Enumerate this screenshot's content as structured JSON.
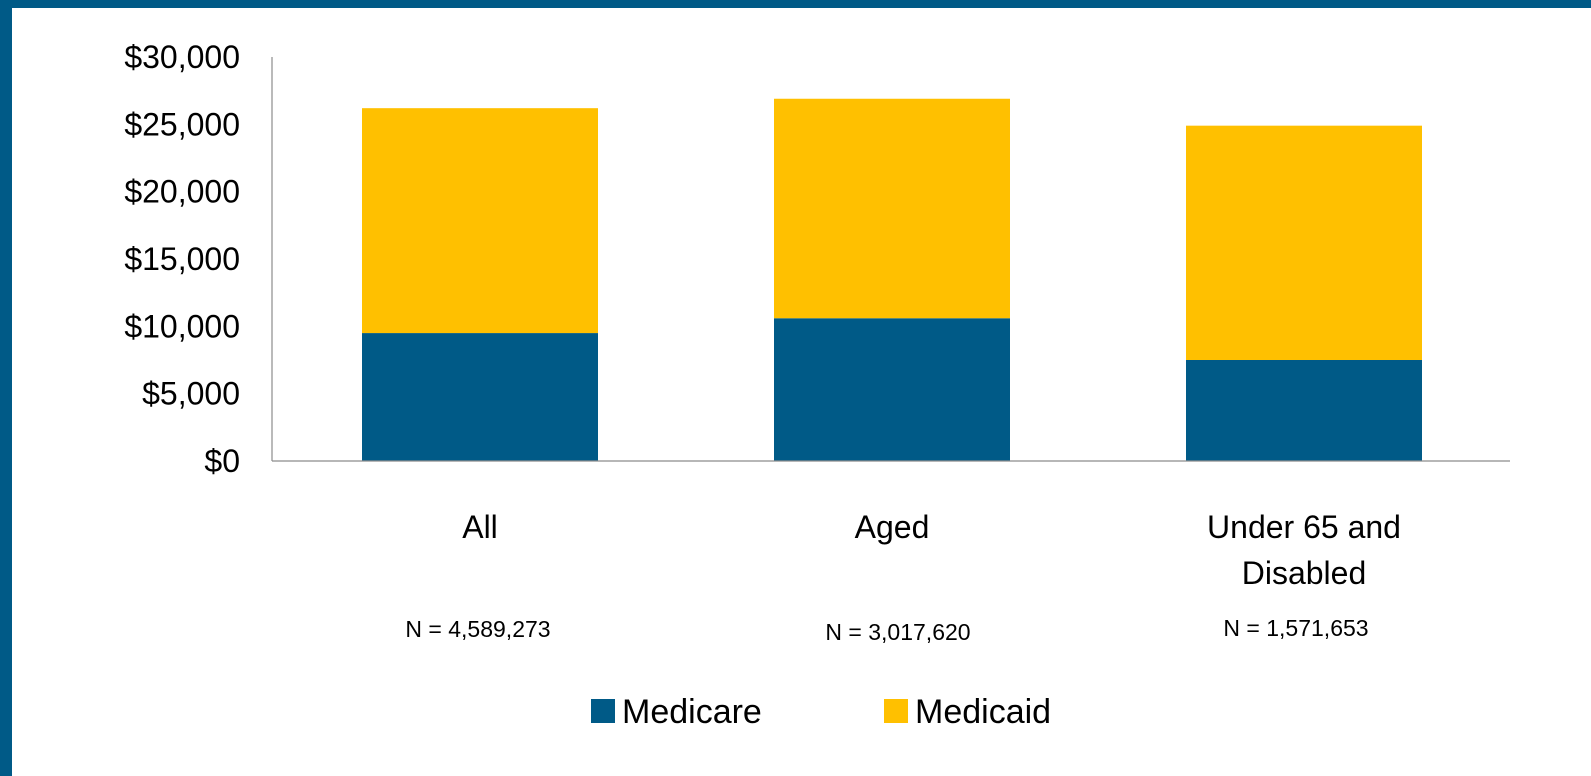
{
  "frame": {
    "border_color": "#005A87"
  },
  "chart_data": {
    "type": "bar",
    "stacked": true,
    "categories": [
      "All",
      "Aged",
      "Under 65 and Disabled"
    ],
    "category_label_lines": [
      [
        "All"
      ],
      [
        "Aged"
      ],
      [
        "Under 65 and",
        "Disabled"
      ]
    ],
    "sample_sizes": [
      "N = 4,589,273",
      "N = 3,017,620",
      "N = 1,571,653"
    ],
    "series": [
      {
        "name": "Medicare",
        "color": "#005A87",
        "values": [
          9500,
          10600,
          7500
        ]
      },
      {
        "name": "Medicaid",
        "color": "#FFC000",
        "values": [
          16700,
          16300,
          17400
        ]
      }
    ],
    "yticks": [
      0,
      5000,
      10000,
      15000,
      20000,
      25000,
      30000
    ],
    "ytick_labels": [
      "$0",
      "$5,000",
      "$10,000",
      "$15,000",
      "$20,000",
      "$25,000",
      "$30,000"
    ],
    "ylim": [
      0,
      30000
    ],
    "grid": false,
    "legend": "bottom-center",
    "title": "",
    "xlabel": "",
    "ylabel": ""
  }
}
